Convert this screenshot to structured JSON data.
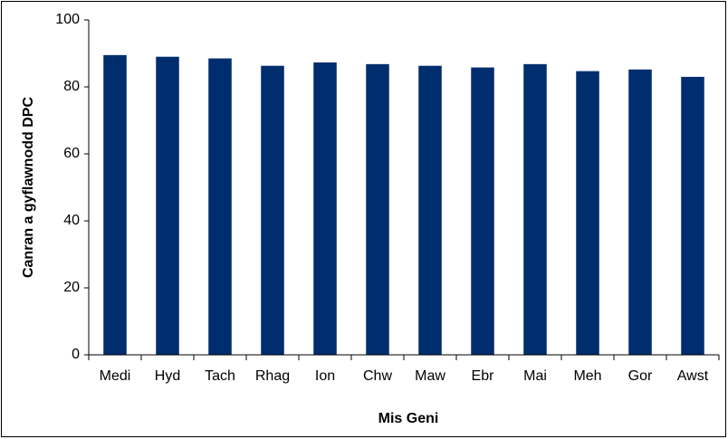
{
  "chart_data": {
    "type": "bar",
    "x_label": "Mis Geni",
    "y_label": "Canran a gyflawnodd DPC",
    "categories": [
      "Medi",
      "Hyd",
      "Tach",
      "Rhag",
      "Ion",
      "Chw",
      "Maw",
      "Ebr",
      "Mai",
      "Meh",
      "Gor",
      "Awst"
    ],
    "values": [
      89.5,
      89,
      88.5,
      86.3,
      87.3,
      86.8,
      86.3,
      85.8,
      86.8,
      84.7,
      85.2,
      83
    ],
    "color": "#002d6e",
    "ylim": [
      0,
      100
    ],
    "yticks": [
      0,
      20,
      40,
      60,
      80,
      100
    ],
    "grid": false
  }
}
